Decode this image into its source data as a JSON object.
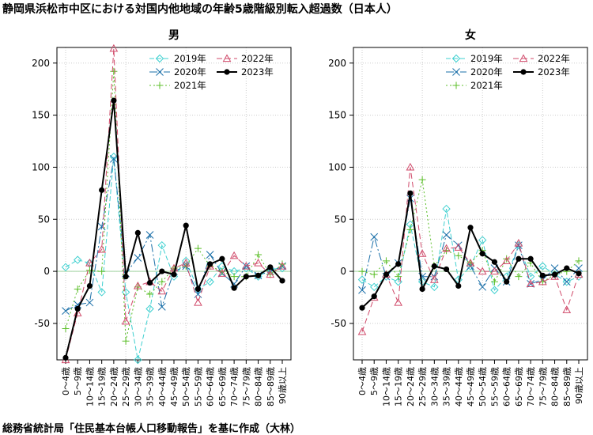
{
  "title": "静岡県浜松市中区における対国内他地域の年齢5歳階級別転入超過数（日本人）",
  "credit": "総務省統計局「住民基本台帳人口移動報告」を基に作成（大林）",
  "colors": {
    "2019年": "#3fd0d0",
    "2020年": "#1a6fa8",
    "2021年": "#5cbf2a",
    "2022年": "#d04a6a",
    "2023年": "#000000",
    "grid": "#cccccc",
    "zero_line": "#a8d8a8"
  },
  "chart_data": [
    {
      "type": "line",
      "title": "男",
      "categories": [
        "0～4歳",
        "5～9歳",
        "10～14歳",
        "15～19歳",
        "20～24歳",
        "25～29歳",
        "30～34歳",
        "35～39歳",
        "40～44歳",
        "45～49歳",
        "50～54歳",
        "55～59歳",
        "60～64歳",
        "65～69歳",
        "70～74歳",
        "75～79歳",
        "80～84歳",
        "85～89歳",
        "90歳以上"
      ],
      "ylim": [
        -85,
        215
      ],
      "yticks": [
        -50,
        0,
        50,
        100,
        150,
        200
      ],
      "grid": true,
      "legend_position": "top-right",
      "series": [
        {
          "name": "2019年",
          "marker": "diamond",
          "dash": "6,3",
          "values": [
            4,
            11,
            8,
            -20,
            110,
            -20,
            -85,
            -36,
            25,
            -5,
            10,
            -17,
            -10,
            5,
            0,
            3,
            -5,
            2,
            3
          ]
        },
        {
          "name": "2020年",
          "marker": "cross",
          "dash": "10,3,2,3",
          "values": [
            -38,
            -32,
            -30,
            43,
            108,
            -2,
            13,
            35,
            -34,
            0,
            5,
            -22,
            16,
            -2,
            -12,
            5,
            -4,
            0,
            5
          ]
        },
        {
          "name": "2021年",
          "marker": "plus",
          "dash": "2,3",
          "values": [
            -55,
            -17,
            1,
            0,
            192,
            -67,
            -15,
            -22,
            -10,
            3,
            5,
            22,
            5,
            0,
            -5,
            -5,
            16,
            -3,
            7
          ]
        },
        {
          "name": "2022年",
          "marker": "triangle",
          "dash": "7,4",
          "values": [
            -85,
            -40,
            8,
            21,
            214,
            -48,
            -14,
            -10,
            -19,
            3,
            8,
            -30,
            5,
            -2,
            15,
            5,
            8,
            -3,
            5
          ]
        },
        {
          "name": "2023年",
          "marker": "dot",
          "dash": "",
          "values": [
            -83,
            -36,
            -14,
            78,
            164,
            -5,
            37,
            -11,
            0,
            -3,
            44,
            -17,
            7,
            12,
            -16,
            -5,
            -4,
            4,
            -9
          ]
        }
      ]
    },
    {
      "type": "line",
      "title": "女",
      "categories": [
        "0～4歳",
        "5～9歳",
        "10～14歳",
        "15～19歳",
        "20～24歳",
        "25～29歳",
        "30～34歳",
        "35～39歳",
        "40～44歳",
        "45～49歳",
        "50～54歳",
        "55～59歳",
        "60～64歳",
        "65～69歳",
        "70～74歳",
        "75～79歳",
        "80～84歳",
        "85～89歳",
        "90歳以上"
      ],
      "ylim": [
        -85,
        215
      ],
      "yticks": [
        -50,
        0,
        50,
        100,
        150,
        200
      ],
      "grid": true,
      "legend_position": "top-right",
      "series": [
        {
          "name": "2019年",
          "marker": "diamond",
          "dash": "6,3",
          "values": [
            -8,
            -15,
            -5,
            -10,
            45,
            -10,
            -15,
            60,
            -8,
            5,
            30,
            -18,
            -5,
            25,
            -5,
            5,
            -3,
            -10,
            -5
          ]
        },
        {
          "name": "2020年",
          "marker": "cross",
          "dash": "10,3,2,3",
          "values": [
            -18,
            33,
            -5,
            8,
            70,
            -5,
            -5,
            35,
            25,
            5,
            -15,
            3,
            -10,
            25,
            -12,
            -8,
            3,
            -10,
            3
          ]
        },
        {
          "name": "2021年",
          "marker": "plus",
          "dash": "2,3",
          "values": [
            0,
            -3,
            10,
            -5,
            40,
            88,
            5,
            20,
            15,
            8,
            20,
            -10,
            12,
            -5,
            8,
            -10,
            -3,
            0,
            10
          ]
        },
        {
          "name": "2022年",
          "marker": "triangle",
          "dash": "7,4",
          "values": [
            -58,
            -25,
            -3,
            -30,
            100,
            17,
            -8,
            22,
            23,
            8,
            0,
            0,
            10,
            27,
            -12,
            -10,
            -5,
            -37,
            -3
          ]
        },
        {
          "name": "2023年",
          "marker": "dot",
          "dash": "",
          "values": [
            -35,
            -24,
            -3,
            7,
            75,
            -17,
            5,
            2,
            -14,
            42,
            17,
            9,
            -10,
            12,
            12,
            -4,
            -3,
            3,
            -2
          ]
        }
      ]
    }
  ]
}
